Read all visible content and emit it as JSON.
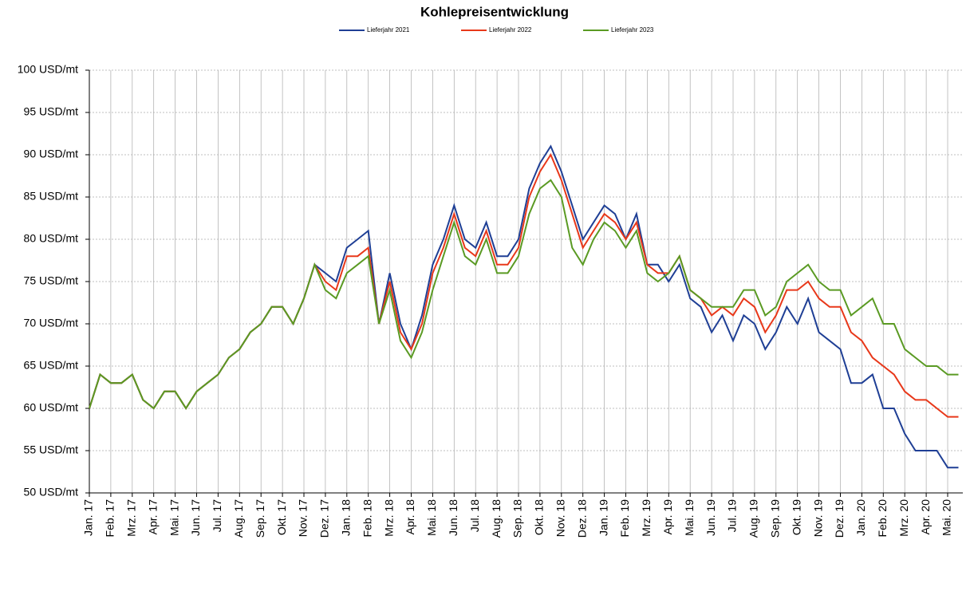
{
  "chart_data": {
    "type": "line",
    "title": "Kohlepreisentwicklung",
    "categories": [
      "Jan. 17",
      null,
      "Feb. 17",
      null,
      "Mrz. 17",
      null,
      "Apr. 17",
      null,
      "Mai. 17",
      null,
      "Jun. 17",
      null,
      "Jul. 17",
      null,
      "Aug. 17",
      null,
      "Sep. 17",
      null,
      "Okt. 17",
      null,
      "Nov. 17",
      null,
      "Dez. 17",
      null,
      "Jan. 18",
      null,
      "Feb. 18",
      null,
      "Mrz. 18",
      null,
      "Apr. 18",
      null,
      "Mai. 18",
      null,
      "Jun. 18",
      null,
      "Jul. 18",
      null,
      "Aug. 18",
      null,
      "Sep. 18",
      null,
      "Okt. 18",
      null,
      "Nov. 18",
      null,
      "Dez. 18",
      null,
      "Jan. 19",
      null,
      "Feb. 19",
      null,
      "Mrz. 19",
      null,
      "Apr. 19",
      null,
      "Mai. 19",
      null,
      "Jun. 19",
      null,
      "Jul. 19",
      null,
      "Aug. 19",
      null,
      "Sep. 19",
      null,
      "Okt. 19",
      null,
      "Nov. 19",
      null,
      "Dez. 19",
      null,
      "Jan. 20",
      null,
      "Feb. 20",
      null,
      "Mrz. 20",
      null,
      "Apr. 20",
      null,
      "Mai. 20",
      null
    ],
    "series": [
      {
        "name": "Lieferjahr 2021",
        "color": "#1f3f95",
        "values": [
          60,
          64,
          63,
          63,
          64,
          61,
          60,
          62,
          62,
          60,
          62,
          63,
          64,
          66,
          67,
          69,
          70,
          72,
          72,
          70,
          73,
          77,
          76,
          75,
          79,
          80,
          81,
          70,
          76,
          70,
          67,
          71,
          77,
          80,
          84,
          80,
          79,
          82,
          78,
          78,
          80,
          86,
          89,
          91,
          88,
          84,
          80,
          82,
          84,
          83,
          80,
          83,
          77,
          77,
          75,
          77,
          73,
          72,
          69,
          71,
          68,
          71,
          70,
          67,
          69,
          72,
          70,
          73,
          69,
          68,
          67,
          63,
          63,
          64,
          60,
          60,
          57,
          55,
          55,
          55,
          53,
          53
        ]
      },
      {
        "name": "Lieferjahr 2022",
        "color": "#e8381a",
        "values": [
          60,
          64,
          63,
          63,
          64,
          61,
          60,
          62,
          62,
          60,
          62,
          63,
          64,
          66,
          67,
          69,
          70,
          72,
          72,
          70,
          73,
          77,
          75,
          74,
          78,
          78,
          79,
          70,
          75,
          69,
          67,
          70,
          76,
          79,
          83,
          79,
          78,
          81,
          77,
          77,
          79,
          85,
          88,
          90,
          87,
          83,
          79,
          81,
          83,
          82,
          80,
          82,
          77,
          76,
          76,
          78,
          74,
          73,
          71,
          72,
          71,
          73,
          72,
          69,
          71,
          74,
          74,
          75,
          73,
          72,
          72,
          69,
          68,
          66,
          65,
          64,
          62,
          61,
          61,
          60,
          59,
          59
        ]
      },
      {
        "name": "Lieferjahr 2023",
        "color": "#5a9a23",
        "values": [
          60,
          64,
          63,
          63,
          64,
          61,
          60,
          62,
          62,
          60,
          62,
          63,
          64,
          66,
          67,
          69,
          70,
          72,
          72,
          70,
          73,
          77,
          74,
          73,
          76,
          77,
          78,
          70,
          74,
          68,
          66,
          69,
          74,
          78,
          82,
          78,
          77,
          80,
          76,
          76,
          78,
          83,
          86,
          87,
          85,
          79,
          77,
          80,
          82,
          81,
          79,
          81,
          76,
          75,
          76,
          78,
          74,
          73,
          72,
          72,
          72,
          74,
          74,
          71,
          72,
          75,
          76,
          77,
          75,
          74,
          74,
          71,
          72,
          73,
          70,
          70,
          67,
          66,
          65,
          65,
          64,
          64
        ]
      }
    ],
    "ylim": [
      50,
      100
    ],
    "yticks": [
      {
        "value": 50,
        "label": "50 USD/mt"
      },
      {
        "value": 55,
        "label": "55 USD/mt"
      },
      {
        "value": 60,
        "label": "60 USD/mt"
      },
      {
        "value": 65,
        "label": "65 USD/mt"
      },
      {
        "value": 70,
        "label": "70 USD/mt"
      },
      {
        "value": 75,
        "label": "75 USD/mt"
      },
      {
        "value": 80,
        "label": "80 USD/mt"
      },
      {
        "value": 85,
        "label": "85 USD/mt"
      },
      {
        "value": 90,
        "label": "90 USD/mt"
      },
      {
        "value": 95,
        "label": "95 USD/mt"
      },
      {
        "value": 100,
        "label": "100 USD/mt"
      }
    ],
    "grid": true
  }
}
